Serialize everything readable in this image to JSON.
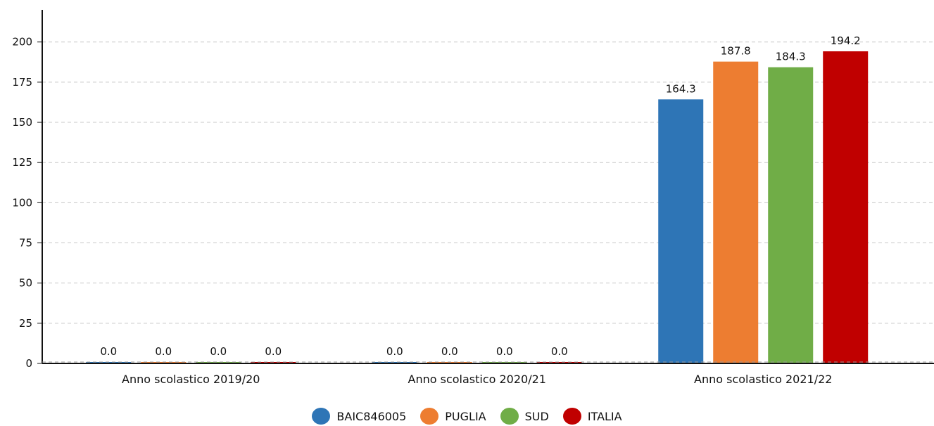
{
  "chart_data": {
    "type": "bar",
    "title": "",
    "xlabel": "",
    "ylabel": "",
    "categories": [
      "Anno scolastico 2019/20",
      "Anno scolastico 2020/21",
      "Anno scolastico 2021/22"
    ],
    "series": [
      {
        "name": "BAIC846005",
        "color": "#2e75b6",
        "values": [
          0.0,
          0.0,
          164.3
        ],
        "labels": [
          "0.0",
          "0.0",
          "164.3"
        ]
      },
      {
        "name": "PUGLIA",
        "color": "#ed7d31",
        "values": [
          0.0,
          0.0,
          187.8
        ],
        "labels": [
          "0.0",
          "0.0",
          "187.8"
        ]
      },
      {
        "name": "SUD",
        "color": "#70ad47",
        "values": [
          0.0,
          0.0,
          184.3
        ],
        "labels": [
          "0.0",
          "0.0",
          "184.3"
        ]
      },
      {
        "name": "ITALIA",
        "color": "#c00000",
        "values": [
          0.0,
          0.0,
          194.2
        ],
        "labels": [
          "0.0",
          "0.0",
          "194.2"
        ]
      }
    ],
    "ylim": [
      0,
      220
    ],
    "yticks": [
      0,
      25,
      50,
      75,
      100,
      125,
      150,
      175,
      200
    ],
    "grid": true,
    "legend_position": "bottom-center"
  }
}
